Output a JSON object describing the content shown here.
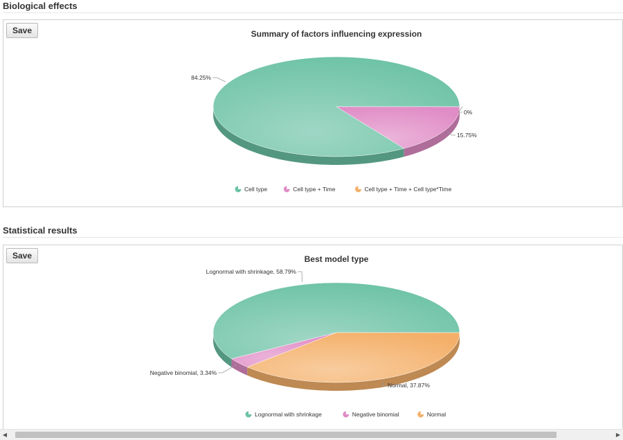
{
  "sections": [
    {
      "title": "Biological effects",
      "save_label": "Save",
      "chart_data": {
        "type": "pie",
        "title": "Summary of factors influencing expression",
        "slices": [
          {
            "label": "Cell type",
            "value": 84.25,
            "value_label": "84.25%",
            "color": "#6cc2a5"
          },
          {
            "label": "Cell type + Time",
            "value": 15.75,
            "value_label": "15.75%",
            "color": "#e08cc6"
          },
          {
            "label": "Cell type + Time + Cell type*Time",
            "value": 0,
            "value_label": "0%",
            "color": "#f4b06a"
          }
        ],
        "legend_position": "bottom",
        "three_d": true
      }
    },
    {
      "title": "Statistical results",
      "save_label": "Save",
      "chart_data": {
        "type": "pie",
        "title": "Best model type",
        "slices": [
          {
            "label": "Lognormal with shrinkage",
            "value": 58.79,
            "value_label": "Lognormal with shrinkage, 58.79%",
            "color": "#6cc2a5"
          },
          {
            "label": "Negative binomial",
            "value": 3.34,
            "value_label": "Negative binomial, 3.34%",
            "color": "#e08cc6"
          },
          {
            "label": "Normal",
            "value": 37.87,
            "value_label": "Normal, 37.87%",
            "color": "#f4b06a"
          }
        ],
        "legend_position": "bottom",
        "three_d": true
      }
    }
  ]
}
